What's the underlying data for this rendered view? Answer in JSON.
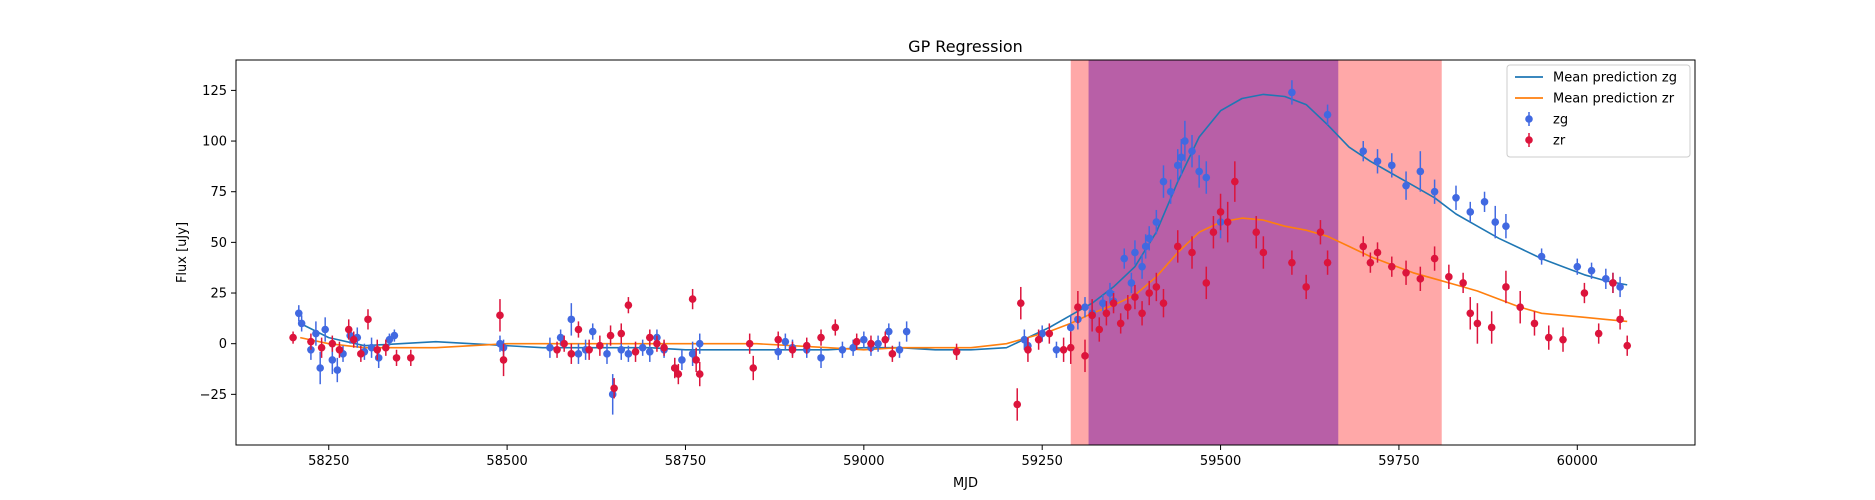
{
  "chart_data": {
    "type": "scatter",
    "title": "GP Regression",
    "xlabel": "MJD",
    "ylabel": "Flux [uJy]",
    "xlim": [
      58120,
      60165
    ],
    "ylim": [
      -50,
      140
    ],
    "x_ticks": [
      58250,
      58500,
      58750,
      59000,
      59250,
      59500,
      59750,
      60000
    ],
    "y_ticks": [
      -25,
      0,
      25,
      50,
      75,
      100,
      125
    ],
    "grid": false,
    "legend_position": "top-right",
    "shaded_regions": [
      {
        "x0": 59290,
        "x1": 59810,
        "color": "#ff9999"
      },
      {
        "x0": 59315,
        "x1": 59665,
        "color": "#a64ca6"
      }
    ],
    "series": [
      {
        "name": "Mean prediction zg",
        "kind": "line",
        "color": "#1f77b4",
        "x": [
          58210,
          58250,
          58300,
          58350,
          58400,
          58450,
          58500,
          58550,
          58600,
          58650,
          58700,
          58750,
          58800,
          58850,
          58900,
          58950,
          59000,
          59050,
          59100,
          59150,
          59200,
          59230,
          59260,
          59290,
          59320,
          59350,
          59380,
          59410,
          59440,
          59470,
          59500,
          59530,
          59560,
          59590,
          59620,
          59650,
          59680,
          59710,
          59740,
          59770,
          59800,
          59830,
          59860,
          59890,
          59920,
          59950,
          59980,
          60010,
          60040,
          60070
        ],
        "y": [
          10,
          3,
          -1,
          0,
          1,
          0,
          -1,
          -2,
          -2,
          -2,
          -2,
          -3,
          -3,
          -3,
          -3,
          -3,
          -2,
          -2,
          -3,
          -3,
          -2,
          3,
          8,
          14,
          20,
          28,
          38,
          55,
          80,
          102,
          115,
          121,
          123,
          122,
          118,
          108,
          97,
          90,
          84,
          78,
          72,
          64,
          58,
          52,
          47,
          42,
          38,
          34,
          31,
          29
        ]
      },
      {
        "name": "Mean prediction zr",
        "kind": "line",
        "color": "#ff7f0e",
        "x": [
          58210,
          58250,
          58300,
          58350,
          58400,
          58450,
          58500,
          58550,
          58600,
          58650,
          58700,
          58750,
          58800,
          58850,
          58900,
          58950,
          59000,
          59050,
          59100,
          59150,
          59200,
          59230,
          59260,
          59290,
          59320,
          59350,
          59380,
          59410,
          59440,
          59470,
          59500,
          59530,
          59560,
          59590,
          59620,
          59650,
          59680,
          59710,
          59740,
          59770,
          59800,
          59830,
          59860,
          59890,
          59920,
          59950,
          59980,
          60010,
          60040,
          60070
        ],
        "y": [
          3,
          0,
          -2,
          -2,
          -2,
          -1,
          0,
          0,
          0,
          0,
          0,
          0,
          0,
          0,
          -1,
          -2,
          -3,
          -2,
          -2,
          -2,
          0,
          3,
          6,
          10,
          15,
          19,
          24,
          33,
          45,
          55,
          60,
          62,
          61,
          58,
          56,
          53,
          48,
          43,
          39,
          35,
          32,
          29,
          26,
          22,
          18,
          15,
          14,
          13,
          12,
          11
        ]
      },
      {
        "name": "zg",
        "kind": "errorbar",
        "color": "#4169e1",
        "x": [
          58208,
          58212,
          58225,
          58232,
          58238,
          58245,
          58255,
          58262,
          58270,
          58280,
          58290,
          58300,
          58310,
          58320,
          58335,
          58342,
          58490,
          58495,
          58560,
          58575,
          58590,
          58600,
          58610,
          58620,
          58640,
          58648,
          58660,
          58670,
          58690,
          58700,
          58710,
          58720,
          58735,
          58745,
          58760,
          58770,
          58880,
          58890,
          58900,
          58920,
          58940,
          58970,
          58985,
          59000,
          59010,
          59020,
          59035,
          59050,
          59060,
          59225,
          59230,
          59250,
          59270,
          59290,
          59300,
          59310,
          59320,
          59335,
          59345,
          59350,
          59365,
          59375,
          59380,
          59390,
          59395,
          59400,
          59410,
          59420,
          59430,
          59440,
          59445,
          59450,
          59460,
          59470,
          59480,
          59500,
          59600,
          59650,
          59700,
          59720,
          59740,
          59760,
          59780,
          59800,
          59830,
          59850,
          59870,
          59885,
          59900,
          59950,
          60000,
          60020,
          60040,
          60050,
          60060
        ],
        "y": [
          15,
          10,
          -3,
          5,
          -12,
          7,
          -8,
          -13,
          -5,
          4,
          3,
          -4,
          -2,
          -7,
          2,
          4,
          0,
          -2,
          -2,
          3,
          12,
          -5,
          -3,
          6,
          -5,
          -25,
          -3,
          -5,
          -2,
          -4,
          3,
          -3,
          -12,
          -8,
          -5,
          0,
          -4,
          1,
          -2,
          -3,
          -7,
          -3,
          -2,
          2,
          -2,
          0,
          6,
          -3,
          6,
          2,
          -1,
          5,
          -3,
          8,
          12,
          18,
          15,
          20,
          25,
          21,
          42,
          30,
          45,
          38,
          48,
          52,
          60,
          80,
          75,
          88,
          92,
          100,
          95,
          85,
          82,
          60,
          124,
          113,
          95,
          90,
          88,
          78,
          85,
          75,
          72,
          65,
          70,
          60,
          58,
          43,
          38,
          36,
          32,
          30,
          28
        ],
        "yerr": [
          4,
          4,
          5,
          6,
          8,
          6,
          7,
          6,
          4,
          4,
          5,
          4,
          5,
          5,
          3,
          3,
          4,
          4,
          5,
          4,
          8,
          5,
          5,
          4,
          5,
          10,
          5,
          4,
          4,
          5,
          4,
          4,
          5,
          5,
          6,
          5,
          4,
          4,
          4,
          4,
          5,
          4,
          4,
          4,
          4,
          4,
          4,
          4,
          5,
          5,
          4,
          4,
          4,
          6,
          5,
          5,
          4,
          4,
          5,
          5,
          5,
          5,
          6,
          6,
          6,
          6,
          6,
          8,
          6,
          8,
          9,
          10,
          8,
          8,
          8,
          8,
          6,
          5,
          5,
          6,
          6,
          7,
          10,
          6,
          6,
          5,
          5,
          8,
          6,
          4,
          4,
          4,
          5,
          5,
          5
        ]
      },
      {
        "name": "zr",
        "kind": "errorbar",
        "color": "#dc143c",
        "x": [
          58200,
          58225,
          58240,
          58255,
          58265,
          58278,
          58285,
          58295,
          58305,
          58318,
          58330,
          58345,
          58365,
          58490,
          58495,
          58570,
          58580,
          58590,
          58600,
          58615,
          58630,
          58645,
          58650,
          58660,
          58670,
          58680,
          58700,
          58710,
          58720,
          58735,
          58740,
          58760,
          58765,
          58770,
          58840,
          58845,
          58880,
          58900,
          58920,
          58940,
          58960,
          58990,
          59010,
          59030,
          59040,
          59130,
          59215,
          59220,
          59230,
          59245,
          59260,
          59280,
          59290,
          59300,
          59310,
          59320,
          59330,
          59340,
          59350,
          59360,
          59370,
          59380,
          59390,
          59400,
          59410,
          59420,
          59440,
          59460,
          59480,
          59490,
          59500,
          59510,
          59520,
          59550,
          59560,
          59600,
          59620,
          59640,
          59650,
          59700,
          59710,
          59720,
          59740,
          59760,
          59780,
          59800,
          59820,
          59840,
          59850,
          59860,
          59880,
          59900,
          59920,
          59940,
          59960,
          59980,
          60010,
          60030,
          60050,
          60060,
          60070
        ],
        "y": [
          3,
          1,
          -2,
          0,
          -3,
          7,
          2,
          -5,
          12,
          -3,
          -2,
          -7,
          -7,
          14,
          -8,
          -3,
          0,
          -5,
          7,
          -3,
          -1,
          4,
          -22,
          5,
          19,
          -4,
          3,
          0,
          -2,
          -12,
          -15,
          22,
          -8,
          -15,
          0,
          -12,
          2,
          -3,
          -1,
          3,
          8,
          1,
          0,
          2,
          -5,
          -4,
          -30,
          20,
          -3,
          2,
          5,
          -3,
          -2,
          18,
          -6,
          14,
          7,
          15,
          20,
          10,
          18,
          23,
          15,
          25,
          28,
          20,
          48,
          45,
          30,
          55,
          65,
          60,
          80,
          55,
          45,
          40,
          28,
          55,
          40,
          48,
          40,
          45,
          38,
          35,
          32,
          42,
          33,
          30,
          15,
          10,
          8,
          28,
          18,
          10,
          3,
          2,
          25,
          5,
          30,
          12,
          -1
        ],
        "yerr": [
          3,
          4,
          5,
          4,
          4,
          5,
          4,
          4,
          5,
          5,
          4,
          4,
          4,
          8,
          8,
          4,
          4,
          5,
          4,
          5,
          5,
          5,
          5,
          5,
          4,
          5,
          4,
          4,
          4,
          5,
          5,
          5,
          6,
          6,
          5,
          6,
          4,
          4,
          4,
          4,
          4,
          4,
          4,
          4,
          4,
          4,
          8,
          8,
          6,
          5,
          5,
          6,
          8,
          8,
          8,
          8,
          6,
          6,
          5,
          5,
          6,
          6,
          6,
          6,
          7,
          7,
          8,
          8,
          8,
          8,
          9,
          10,
          10,
          8,
          8,
          6,
          6,
          6,
          6,
          5,
          5,
          5,
          5,
          6,
          6,
          6,
          6,
          5,
          8,
          10,
          8,
          8,
          8,
          6,
          6,
          6,
          5,
          5,
          5,
          5,
          5
        ]
      }
    ]
  }
}
